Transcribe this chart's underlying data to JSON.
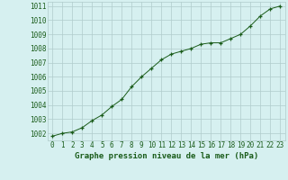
{
  "x": [
    0,
    1,
    2,
    3,
    4,
    5,
    6,
    7,
    8,
    9,
    10,
    11,
    12,
    13,
    14,
    15,
    16,
    17,
    18,
    19,
    20,
    21,
    22,
    23
  ],
  "y": [
    1001.8,
    1002.0,
    1002.1,
    1002.4,
    1002.9,
    1003.3,
    1003.9,
    1004.4,
    1005.3,
    1006.0,
    1006.6,
    1007.2,
    1007.6,
    1007.8,
    1008.0,
    1008.3,
    1008.4,
    1008.4,
    1008.7,
    1009.0,
    1009.6,
    1010.3,
    1010.8,
    1011.0
  ],
  "line_color": "#1a5c1a",
  "marker": "+",
  "marker_color": "#1a5c1a",
  "bg_color": "#d6f0f0",
  "grid_color": "#b0cccc",
  "xlabel": "Graphe pression niveau de la mer (hPa)",
  "xlabel_color": "#1a5c1a",
  "tick_color": "#1a5c1a",
  "ylim_min": 1001.5,
  "ylim_max": 1011.3,
  "xlim_min": -0.5,
  "xlim_max": 23.5,
  "yticks": [
    1002,
    1003,
    1004,
    1005,
    1006,
    1007,
    1008,
    1009,
    1010,
    1011
  ],
  "xticks": [
    0,
    1,
    2,
    3,
    4,
    5,
    6,
    7,
    8,
    9,
    10,
    11,
    12,
    13,
    14,
    15,
    16,
    17,
    18,
    19,
    20,
    21,
    22,
    23
  ],
  "tick_fontsize": 5.5,
  "xlabel_fontsize": 6.5
}
